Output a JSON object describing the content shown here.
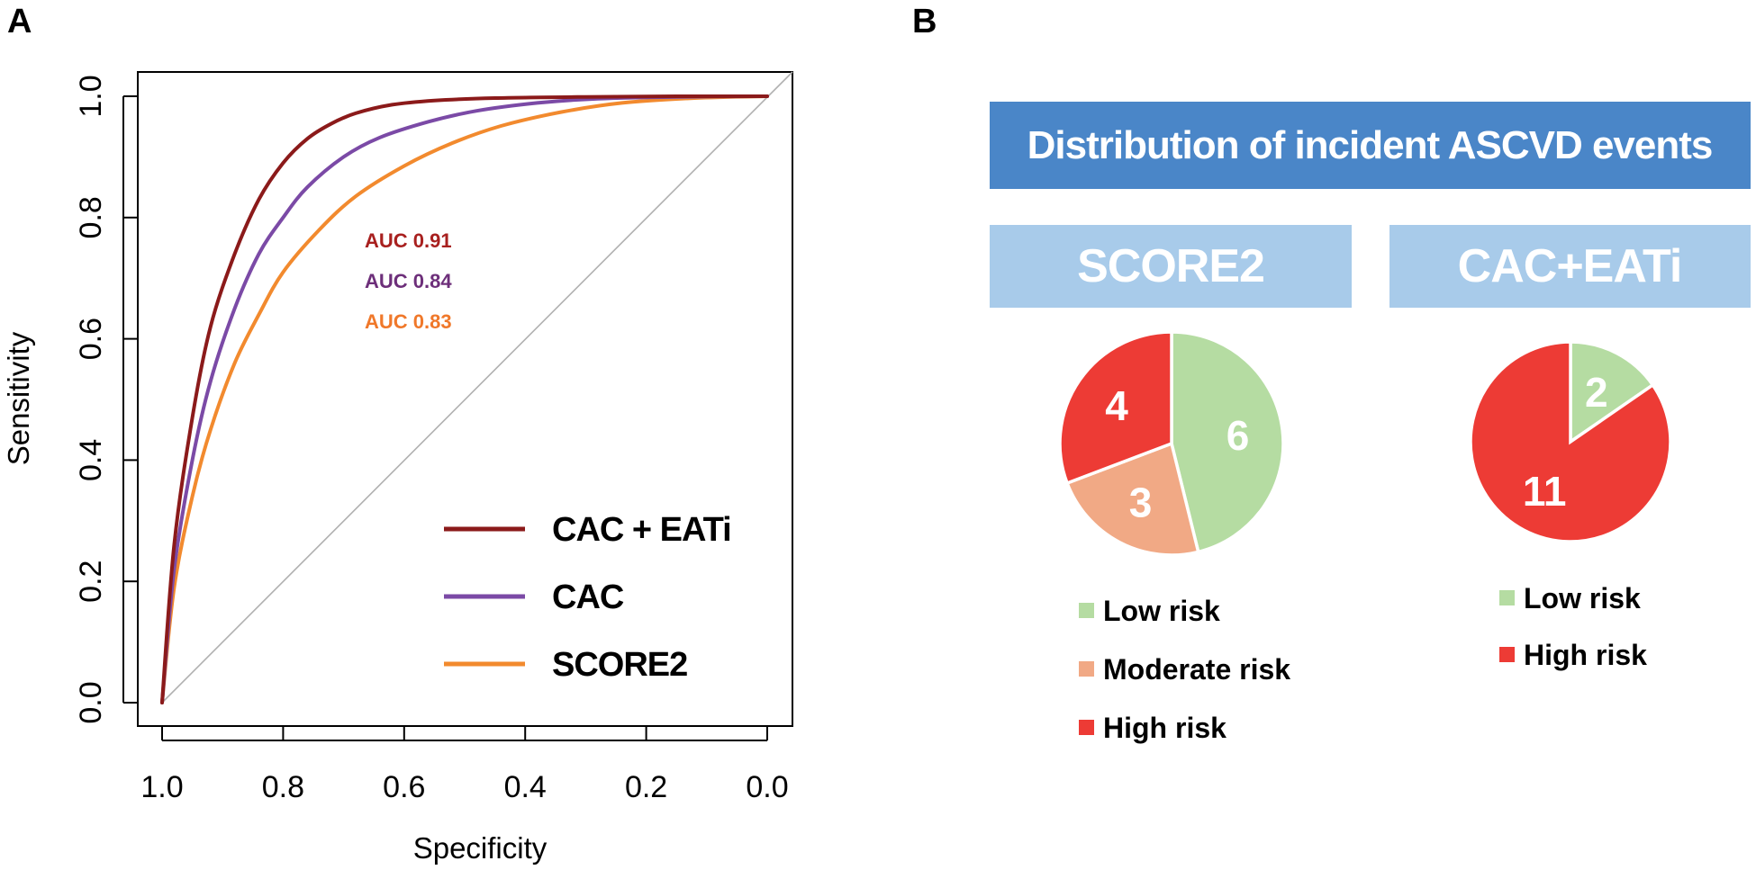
{
  "panel_a": {
    "letter": "A"
  },
  "panel_b": {
    "letter": "B",
    "banner": "Distribution of incident ASCVD events",
    "banner_color": "#4a86c8",
    "group_header_color": "#a8cbea"
  },
  "chart_data": [
    {
      "type": "line",
      "xlabel": "Specificity",
      "ylabel": "Sensitivity",
      "xlim": [
        1.0,
        0.0
      ],
      "ylim": [
        0.0,
        1.0
      ],
      "x_reversed": true,
      "xticks": [
        "1.0",
        "0.8",
        "0.6",
        "0.4",
        "0.2",
        "0.0"
      ],
      "yticks": [
        "0.0",
        "0.2",
        "0.4",
        "0.6",
        "0.8",
        "1.0"
      ],
      "grid": false,
      "reference_line": "diagonal",
      "legend_position": "bottom-right",
      "series": [
        {
          "name": "CAC + EATi",
          "color": "#8b1a1a",
          "auc_label": "AUC 0.91",
          "auc_color": "#a8201f",
          "points": [
            {
              "x": 1.0,
              "y": 0.0
            },
            {
              "x": 0.98,
              "y": 0.26
            },
            {
              "x": 0.95,
              "y": 0.47
            },
            {
              "x": 0.92,
              "y": 0.62
            },
            {
              "x": 0.88,
              "y": 0.74
            },
            {
              "x": 0.84,
              "y": 0.83
            },
            {
              "x": 0.8,
              "y": 0.89
            },
            {
              "x": 0.76,
              "y": 0.93
            },
            {
              "x": 0.72,
              "y": 0.955
            },
            {
              "x": 0.68,
              "y": 0.972
            },
            {
              "x": 0.62,
              "y": 0.986
            },
            {
              "x": 0.55,
              "y": 0.993
            },
            {
              "x": 0.45,
              "y": 0.997
            },
            {
              "x": 0.3,
              "y": 0.999
            },
            {
              "x": 0.15,
              "y": 1.0
            },
            {
              "x": 0.0,
              "y": 1.0
            }
          ]
        },
        {
          "name": "CAC",
          "color": "#7b4aa6",
          "auc_label": "AUC 0.84",
          "auc_color": "#6d2f7a",
          "points": [
            {
              "x": 1.0,
              "y": 0.0
            },
            {
              "x": 0.98,
              "y": 0.22
            },
            {
              "x": 0.95,
              "y": 0.4
            },
            {
              "x": 0.92,
              "y": 0.53
            },
            {
              "x": 0.88,
              "y": 0.65
            },
            {
              "x": 0.84,
              "y": 0.74
            },
            {
              "x": 0.8,
              "y": 0.8
            },
            {
              "x": 0.76,
              "y": 0.85
            },
            {
              "x": 0.7,
              "y": 0.9
            },
            {
              "x": 0.64,
              "y": 0.932
            },
            {
              "x": 0.56,
              "y": 0.958
            },
            {
              "x": 0.48,
              "y": 0.976
            },
            {
              "x": 0.38,
              "y": 0.989
            },
            {
              "x": 0.28,
              "y": 0.996
            },
            {
              "x": 0.15,
              "y": 0.999
            },
            {
              "x": 0.0,
              "y": 1.0
            }
          ]
        },
        {
          "name": "SCORE2",
          "color": "#f28a2e",
          "auc_label": "AUC 0.83",
          "auc_color": "#f0782a",
          "points": [
            {
              "x": 1.0,
              "y": 0.0
            },
            {
              "x": 0.98,
              "y": 0.19
            },
            {
              "x": 0.95,
              "y": 0.34
            },
            {
              "x": 0.92,
              "y": 0.45
            },
            {
              "x": 0.88,
              "y": 0.56
            },
            {
              "x": 0.84,
              "y": 0.64
            },
            {
              "x": 0.8,
              "y": 0.71
            },
            {
              "x": 0.74,
              "y": 0.78
            },
            {
              "x": 0.68,
              "y": 0.835
            },
            {
              "x": 0.6,
              "y": 0.885
            },
            {
              "x": 0.52,
              "y": 0.923
            },
            {
              "x": 0.44,
              "y": 0.951
            },
            {
              "x": 0.34,
              "y": 0.974
            },
            {
              "x": 0.24,
              "y": 0.989
            },
            {
              "x": 0.12,
              "y": 0.997
            },
            {
              "x": 0.0,
              "y": 1.0
            }
          ]
        }
      ]
    },
    {
      "type": "pie",
      "title": "SCORE2",
      "direction": "clockwise",
      "slices": [
        {
          "label": "Low risk",
          "value": 6,
          "color": "#b5dca2"
        },
        {
          "label": "Moderate risk",
          "value": 3,
          "color": "#f1a985"
        },
        {
          "label": "High risk",
          "value": 4,
          "color": "#ed3b35"
        }
      ]
    },
    {
      "type": "pie",
      "title": "CAC+EATi",
      "direction": "clockwise",
      "slices": [
        {
          "label": "Low risk",
          "value": 2,
          "color": "#b5dca2"
        },
        {
          "label": "High risk",
          "value": 11,
          "color": "#ed3b35"
        }
      ]
    }
  ]
}
